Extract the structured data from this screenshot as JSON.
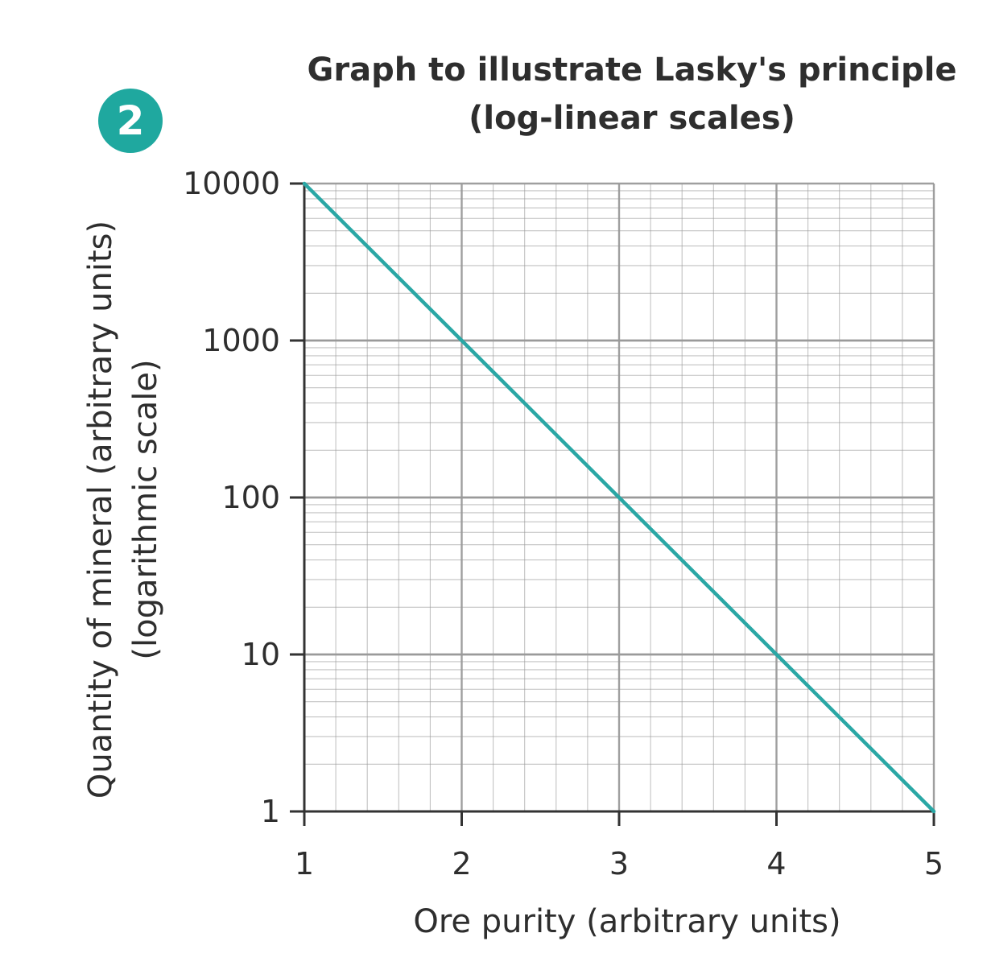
{
  "figure_number": "2",
  "colors": {
    "accent": "#1fa89f",
    "line": "#2aa7a5",
    "grid": "#9a9a9a",
    "axis": "#333333"
  },
  "chart_data": {
    "type": "line",
    "title": "Graph to illustrate Lasky's principle",
    "subtitle": "(log-linear scales)",
    "xlabel": "Ore purity (arbitrary units)",
    "ylabel": "Quantity of mineral (arbitrary units)",
    "ylabel2": "(logarithmic scale)",
    "xlim": [
      1,
      5
    ],
    "ylim": [
      1,
      10000
    ],
    "y_scale": "log",
    "x_ticks": [
      "1",
      "2",
      "3",
      "4",
      "5"
    ],
    "y_ticks": [
      "1",
      "10",
      "100",
      "1000",
      "10000"
    ],
    "grid": true,
    "series": [
      {
        "x": [
          1,
          2,
          3,
          4,
          5
        ],
        "y": [
          10000,
          1000,
          100,
          10,
          1
        ]
      }
    ]
  }
}
